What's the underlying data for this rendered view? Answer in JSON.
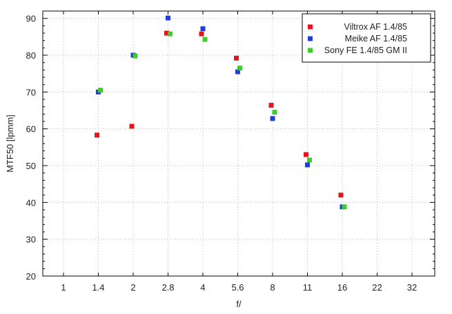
{
  "chart_data": {
    "type": "scatter",
    "title": "",
    "xlabel": "f/",
    "ylabel": "MTF50 [lpmm]",
    "x_ticks": [
      "1",
      "1.4",
      "2",
      "2.8",
      "4",
      "5.6",
      "8",
      "11",
      "16",
      "22",
      "32"
    ],
    "ylim": [
      20,
      92
    ],
    "y_ticks": [
      20,
      30,
      40,
      50,
      60,
      70,
      80,
      90
    ],
    "grid": true,
    "legend_position": "top-right",
    "series": [
      {
        "name": "Viltrox AF 1.4/85",
        "color": "#e8141c",
        "points": [
          {
            "x": "1.4",
            "y": 58.3
          },
          {
            "x": "2",
            "y": 60.7
          },
          {
            "x": "2.8",
            "y": 86.0
          },
          {
            "x": "4",
            "y": 85.8
          },
          {
            "x": "5.6",
            "y": 79.2
          },
          {
            "x": "8",
            "y": 66.4
          },
          {
            "x": "11",
            "y": 53.0
          },
          {
            "x": "16",
            "y": 42.0
          }
        ]
      },
      {
        "name": "Meike AF 1.4/85",
        "color": "#1f3fd6",
        "points": [
          {
            "x": "1.4",
            "y": 70.0
          },
          {
            "x": "2",
            "y": 80.0
          },
          {
            "x": "2.8",
            "y": 90.1
          },
          {
            "x": "4",
            "y": 87.2
          },
          {
            "x": "5.6",
            "y": 75.5
          },
          {
            "x": "8",
            "y": 62.8
          },
          {
            "x": "11",
            "y": 50.2
          },
          {
            "x": "16",
            "y": 38.8
          }
        ]
      },
      {
        "name": "Sony FE 1.4/85 GM II",
        "color": "#3ecb2c",
        "points": [
          {
            "x": "1.4",
            "y": 70.5
          },
          {
            "x": "2",
            "y": 79.8
          },
          {
            "x": "2.8",
            "y": 85.8
          },
          {
            "x": "4",
            "y": 84.3
          },
          {
            "x": "5.6",
            "y": 76.5
          },
          {
            "x": "8",
            "y": 64.5
          },
          {
            "x": "11",
            "y": 51.5
          },
          {
            "x": "16",
            "y": 38.8
          }
        ]
      }
    ]
  }
}
